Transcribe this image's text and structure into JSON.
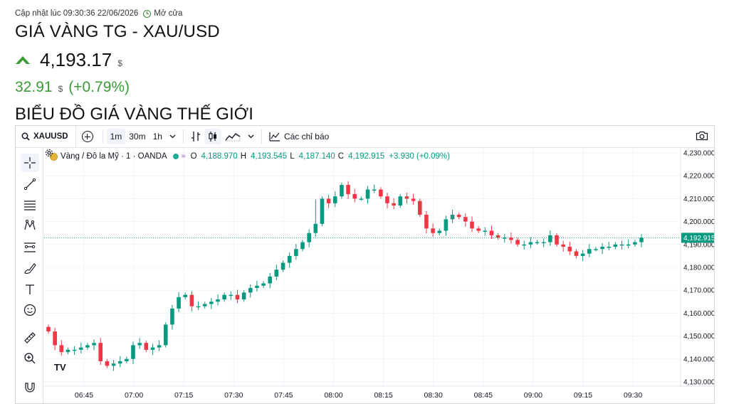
{
  "header": {
    "updated_label": "Cập nhật lúc 09:30:36 22/06/2026",
    "market_status": "Mở cửa",
    "title": "GIÁ VÀNG TG - XAU/USD",
    "price": "4,193.17",
    "currency": "$",
    "change_abs": "32.91",
    "change_pct": "(+0.79%)",
    "section_title": "BIỂU ĐỒ GIÁ VÀNG THẾ GIỚI"
  },
  "toolbar": {
    "symbol": "XAUUSD",
    "intervals": [
      "1m",
      "30m",
      "1h"
    ],
    "active_interval": "1m",
    "indicators_label": "Các chỉ báo"
  },
  "legend": {
    "name": "Vàng / Đô la Mỹ · 1 · OANDA",
    "o_key": "O",
    "o_val": "4,188.970",
    "h_key": "H",
    "h_val": "4,193.545",
    "l_key": "L",
    "l_val": "4,187.140",
    "c_key": "C",
    "c_val": "4,192.915",
    "change": "+3.930 (+0.09%)"
  },
  "logo_text": "TV",
  "colors": {
    "up": "#089981",
    "down": "#f23645",
    "accent_green": "#3a9a35",
    "last_price": "#089981"
  },
  "icons": [
    "search-icon",
    "plus-circle-icon",
    "bar-style-icon",
    "candles-icon",
    "area-icon",
    "indicators-icon",
    "camera-icon",
    "crosshair-icon",
    "trendline-icon",
    "fib-icon",
    "pattern-icon",
    "forecast-icon",
    "brush-icon",
    "text-icon",
    "emoji-icon",
    "ruler-icon",
    "zoom-icon",
    "magnet-icon",
    "gear-icon"
  ],
  "chart_data": {
    "type": "candlestick",
    "y_ticks": [
      "4,230.000",
      "4,220.000",
      "4,210.000",
      "4,200.000",
      "4,190.000",
      "4,180.000",
      "4,170.000",
      "4,160.000",
      "4,150.000",
      "4,140.000",
      "4,130.000"
    ],
    "x_ticks": [
      "06:45",
      "07:00",
      "07:15",
      "07:30",
      "07:45",
      "08:00",
      "08:15",
      "08:30",
      "08:45",
      "09:00",
      "09:15",
      "09:30"
    ],
    "ylim": [
      4126,
      4232
    ],
    "last_price": 4192.915,
    "last_price_label": "4,192.915",
    "closes": [
      4152,
      4146,
      4143,
      4144,
      4144,
      4145,
      4146,
      4147,
      4139,
      4137,
      4138,
      4139,
      4140,
      4146,
      4147,
      4144,
      4145,
      4146,
      4155,
      4162,
      4167,
      4168,
      4163,
      4163,
      4164,
      4165,
      4166,
      4168,
      4168,
      4166,
      4169,
      4171,
      4172,
      4173,
      4176,
      4179,
      4182,
      4185,
      4188,
      4191,
      4195,
      4199,
      4210,
      4208,
      4211,
      4216,
      4212,
      4210,
      4210,
      4214,
      4214,
      4211,
      4208,
      4207,
      4211,
      4210,
      4209,
      4203,
      4197,
      4195,
      4196,
      4201,
      4203,
      4202,
      4200,
      4197,
      4196,
      4196,
      4194,
      4193,
      4193,
      4192,
      4190,
      4190,
      4191,
      4191,
      4191,
      4194,
      4190,
      4189,
      4187,
      4185,
      4186,
      4188,
      4188,
      4189,
      4189,
      4190,
      4190,
      4190,
      4191,
      4192.915
    ]
  }
}
